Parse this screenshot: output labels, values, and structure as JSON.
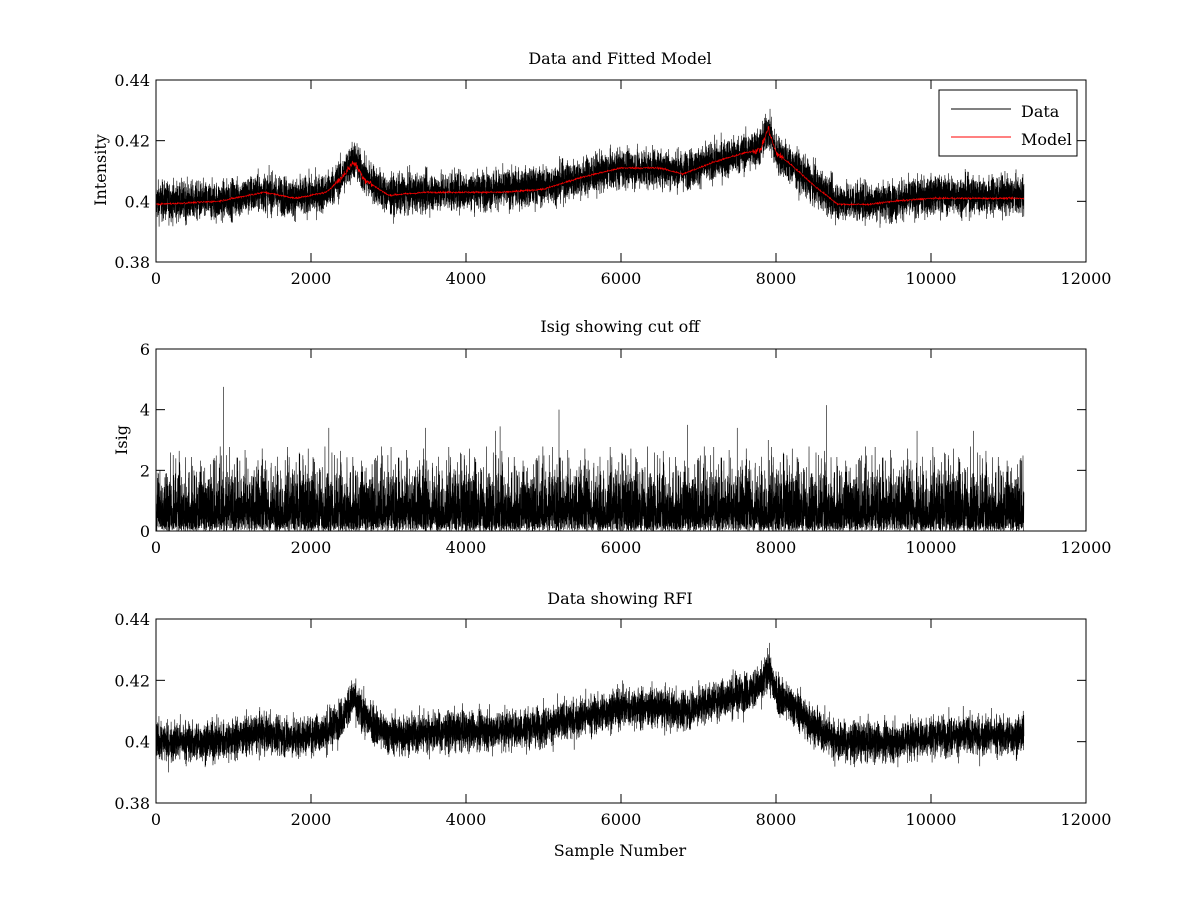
{
  "colors": {
    "data": "#000000",
    "model": "#ff0000",
    "frame": "#000000",
    "background": "#ffffff"
  },
  "chart_data": [
    {
      "type": "line",
      "title": "Data and Fitted Model",
      "xlabel": "",
      "ylabel": "Intensity",
      "xlim": [
        0,
        12000
      ],
      "ylim": [
        0.38,
        0.44
      ],
      "xticks": [
        0,
        2000,
        4000,
        6000,
        8000,
        10000,
        12000
      ],
      "xtick_labels": [
        "0",
        "2000",
        "4000",
        "6000",
        "8000",
        "10000",
        "12000"
      ],
      "yticks": [
        0.38,
        0.4,
        0.42,
        0.44
      ],
      "ytick_labels": [
        "0.38",
        "0.4",
        "0.42",
        "0.44"
      ],
      "n_samples": 11200,
      "legend": {
        "placement": "top-right",
        "entries": [
          "Data",
          "Model"
        ]
      },
      "series": [
        {
          "name": "Data",
          "color": "#000000",
          "noise_band": 0.0035,
          "baseline_x": [
            0,
            800,
            1400,
            1800,
            2200,
            2400,
            2550,
            2700,
            3000,
            3500,
            4500,
            5000,
            5500,
            6000,
            6500,
            6800,
            7200,
            7600,
            7800,
            7900,
            8000,
            8200,
            8500,
            8800,
            9200,
            9500,
            10000,
            11200
          ],
          "baseline_y": [
            0.4,
            0.4,
            0.403,
            0.401,
            0.403,
            0.408,
            0.414,
            0.408,
            0.402,
            0.403,
            0.404,
            0.405,
            0.408,
            0.411,
            0.411,
            0.41,
            0.413,
            0.416,
            0.418,
            0.424,
            0.416,
            0.412,
            0.405,
            0.4,
            0.4,
            0.4,
            0.402,
            0.402
          ]
        },
        {
          "name": "Model",
          "color": "#ff0000",
          "x": [
            0,
            800,
            1400,
            1800,
            2200,
            2400,
            2550,
            2700,
            3000,
            3500,
            4500,
            5000,
            5500,
            6000,
            6500,
            6800,
            7200,
            7600,
            7800,
            7900,
            8000,
            8200,
            8500,
            8800,
            9200,
            9500,
            10000,
            11200
          ],
          "y": [
            0.399,
            0.4,
            0.403,
            0.401,
            0.403,
            0.408,
            0.413,
            0.407,
            0.402,
            0.403,
            0.403,
            0.404,
            0.408,
            0.411,
            0.411,
            0.409,
            0.413,
            0.416,
            0.417,
            0.424,
            0.416,
            0.412,
            0.405,
            0.399,
            0.399,
            0.4,
            0.401,
            0.401
          ]
        }
      ]
    },
    {
      "type": "line",
      "title": "Isig showing cut off",
      "xlabel": "",
      "ylabel": "Isig",
      "xlim": [
        0,
        12000
      ],
      "ylim": [
        0,
        6
      ],
      "xticks": [
        0,
        2000,
        4000,
        6000,
        8000,
        10000,
        12000
      ],
      "xtick_labels": [
        "0",
        "2000",
        "4000",
        "6000",
        "8000",
        "10000",
        "12000"
      ],
      "yticks": [
        0,
        2,
        4,
        6
      ],
      "ytick_labels": [
        "0",
        "2",
        "4",
        "6"
      ],
      "n_samples": 11200,
      "series": [
        {
          "name": "",
          "color": "#000000",
          "typical_max": 1.6,
          "spikes_x": [
            870,
            2230,
            3480,
            4380,
            4440,
            5200,
            6860,
            7500,
            7900,
            8650,
            9820,
            10550
          ],
          "spikes_y": [
            4.75,
            3.4,
            3.4,
            3.3,
            3.45,
            4.0,
            3.5,
            3.4,
            3.0,
            4.15,
            3.3,
            3.3
          ]
        }
      ]
    },
    {
      "type": "line",
      "title": "Data showing RFI",
      "xlabel": "Sample Number",
      "ylabel": "",
      "xlim": [
        0,
        12000
      ],
      "ylim": [
        0.38,
        0.44
      ],
      "xticks": [
        0,
        2000,
        4000,
        6000,
        8000,
        10000,
        12000
      ],
      "xtick_labels": [
        "0",
        "2000",
        "4000",
        "6000",
        "8000",
        "10000",
        "12000"
      ],
      "yticks": [
        0.38,
        0.4,
        0.42,
        0.44
      ],
      "ytick_labels": [
        "0.38",
        "0.4",
        "0.42",
        "0.44"
      ],
      "n_samples": 11200,
      "series": [
        {
          "name": "",
          "color": "#000000",
          "noise_band": 0.0035,
          "baseline_x": [
            0,
            800,
            1400,
            1800,
            2200,
            2400,
            2550,
            2700,
            3000,
            3500,
            4500,
            5000,
            5500,
            6000,
            6500,
            6800,
            7200,
            7600,
            7800,
            7900,
            8000,
            8200,
            8500,
            8800,
            9200,
            9500,
            10000,
            11200
          ],
          "baseline_y": [
            0.4,
            0.4,
            0.403,
            0.401,
            0.403,
            0.408,
            0.414,
            0.408,
            0.402,
            0.403,
            0.404,
            0.405,
            0.408,
            0.411,
            0.411,
            0.41,
            0.413,
            0.416,
            0.418,
            0.424,
            0.416,
            0.412,
            0.405,
            0.4,
            0.4,
            0.4,
            0.402,
            0.402
          ]
        }
      ]
    }
  ]
}
